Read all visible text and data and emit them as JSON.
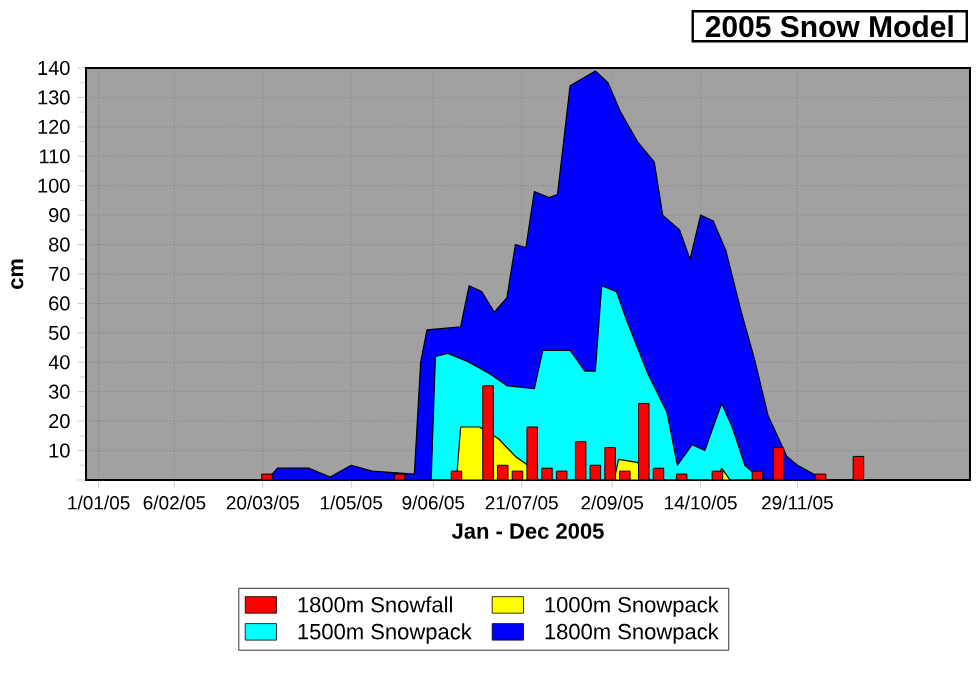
{
  "chart_data": {
    "type": "bar",
    "title": "2005 Snow Model",
    "xlabel": "Jan - Dec 2005",
    "ylabel": "cm",
    "xlim": [
      "2004-12-26",
      "2006-02-19"
    ],
    "ylim": [
      0,
      140
    ],
    "xticks": [
      {
        "value": "2005-01-01",
        "label": "1/01/05"
      },
      {
        "value": "2005-02-06",
        "label": "6/02/05"
      },
      {
        "value": "2005-03-20",
        "label": "20/03/05"
      },
      {
        "value": "2005-05-01",
        "label": "1/05/05"
      },
      {
        "value": "2005-06-09",
        "label": "9/06/05"
      },
      {
        "value": "2005-07-21",
        "label": "21/07/05"
      },
      {
        "value": "2005-09-02",
        "label": "2/09/05"
      },
      {
        "value": "2005-10-14",
        "label": "14/10/05"
      },
      {
        "value": "2005-11-29",
        "label": "29/11/05"
      }
    ],
    "yticks": [
      {
        "value": 0,
        "label": null
      },
      10,
      20,
      30,
      40,
      50,
      60,
      70,
      80,
      90,
      100,
      110,
      120,
      130,
      140
    ],
    "grid": true,
    "legend": "bottom",
    "series": [
      {
        "name": "1800m Snowfall",
        "color": "#ff0000",
        "x": [
          "2005-03-22",
          "2005-05-24",
          "2005-06-20",
          "2005-07-05",
          "2005-07-12",
          "2005-07-19",
          "2005-07-26",
          "2005-08-02",
          "2005-08-09",
          "2005-08-18",
          "2005-08-25",
          "2005-09-01",
          "2005-09-08",
          "2005-09-17",
          "2005-09-24",
          "2005-10-05",
          "2005-10-22",
          "2005-11-10",
          "2005-11-20",
          "2005-12-10",
          "2005-12-28"
        ],
        "values": [
          2,
          2,
          3,
          32,
          5,
          3,
          18,
          4,
          3,
          13,
          5,
          11,
          3,
          26,
          4,
          2,
          3,
          3,
          11,
          2,
          8
        ]
      },
      {
        "name": "1000m Snowpack",
        "type": "area",
        "color": "#ffff00",
        "x": [
          "2005-01-01",
          "2005-06-20",
          "2005-06-22",
          "2005-07-01",
          "2005-07-10",
          "2005-07-18",
          "2005-07-24",
          "2005-07-29",
          "2005-09-03",
          "2005-09-05",
          "2005-09-14",
          "2005-09-20",
          "2005-10-22",
          "2005-10-24",
          "2005-10-28",
          "2005-12-31"
        ],
        "values": [
          0,
          0,
          18,
          18,
          14,
          8,
          5,
          0,
          0,
          7,
          6,
          0,
          0,
          4,
          0,
          0
        ]
      },
      {
        "name": "1500m Snowpack",
        "type": "area",
        "color": "#00ffff",
        "x": [
          "2005-01-01",
          "2005-06-08",
          "2005-06-10",
          "2005-06-16",
          "2005-06-26",
          "2005-07-06",
          "2005-07-14",
          "2005-07-27",
          "2005-07-31",
          "2005-08-13",
          "2005-08-20",
          "2005-08-25",
          "2005-08-28",
          "2005-09-04",
          "2005-09-09",
          "2005-09-19",
          "2005-09-28",
          "2005-10-03",
          "2005-10-10",
          "2005-10-16",
          "2005-10-24",
          "2005-10-29",
          "2005-11-04",
          "2005-11-12",
          "2005-12-31"
        ],
        "values": [
          0,
          0,
          42,
          43,
          40,
          36,
          32,
          31,
          44,
          44,
          37,
          37,
          66,
          64,
          54,
          36,
          23,
          5,
          12,
          10,
          26,
          18,
          5,
          0,
          0
        ]
      },
      {
        "name": "1800m Snowpack",
        "type": "area",
        "color": "#0000ff",
        "x": [
          "2005-01-01",
          "2005-03-22",
          "2005-03-27",
          "2005-04-11",
          "2005-04-21",
          "2005-05-01",
          "2005-05-11",
          "2005-05-31",
          "2005-06-03",
          "2005-06-06",
          "2005-06-22",
          "2005-06-26",
          "2005-07-02",
          "2005-07-08",
          "2005-07-14",
          "2005-07-18",
          "2005-07-23",
          "2005-07-27",
          "2005-08-03",
          "2005-08-07",
          "2005-08-13",
          "2005-08-25",
          "2005-08-31",
          "2005-09-06",
          "2005-09-14",
          "2005-09-22",
          "2005-09-26",
          "2005-10-04",
          "2005-10-09",
          "2005-10-14",
          "2005-10-20",
          "2005-10-26",
          "2005-11-02",
          "2005-11-09",
          "2005-11-15",
          "2005-11-24",
          "2005-11-29",
          "2005-12-12",
          "2005-12-31"
        ],
        "values": [
          0,
          0,
          4,
          4,
          1,
          5,
          3,
          2,
          40,
          51,
          52,
          66,
          64,
          57,
          62,
          80,
          79,
          98,
          96,
          97,
          134,
          139,
          135,
          125,
          115,
          108,
          90,
          85,
          75,
          90,
          88,
          78,
          58,
          40,
          22,
          8,
          5,
          0,
          0
        ]
      }
    ]
  }
}
